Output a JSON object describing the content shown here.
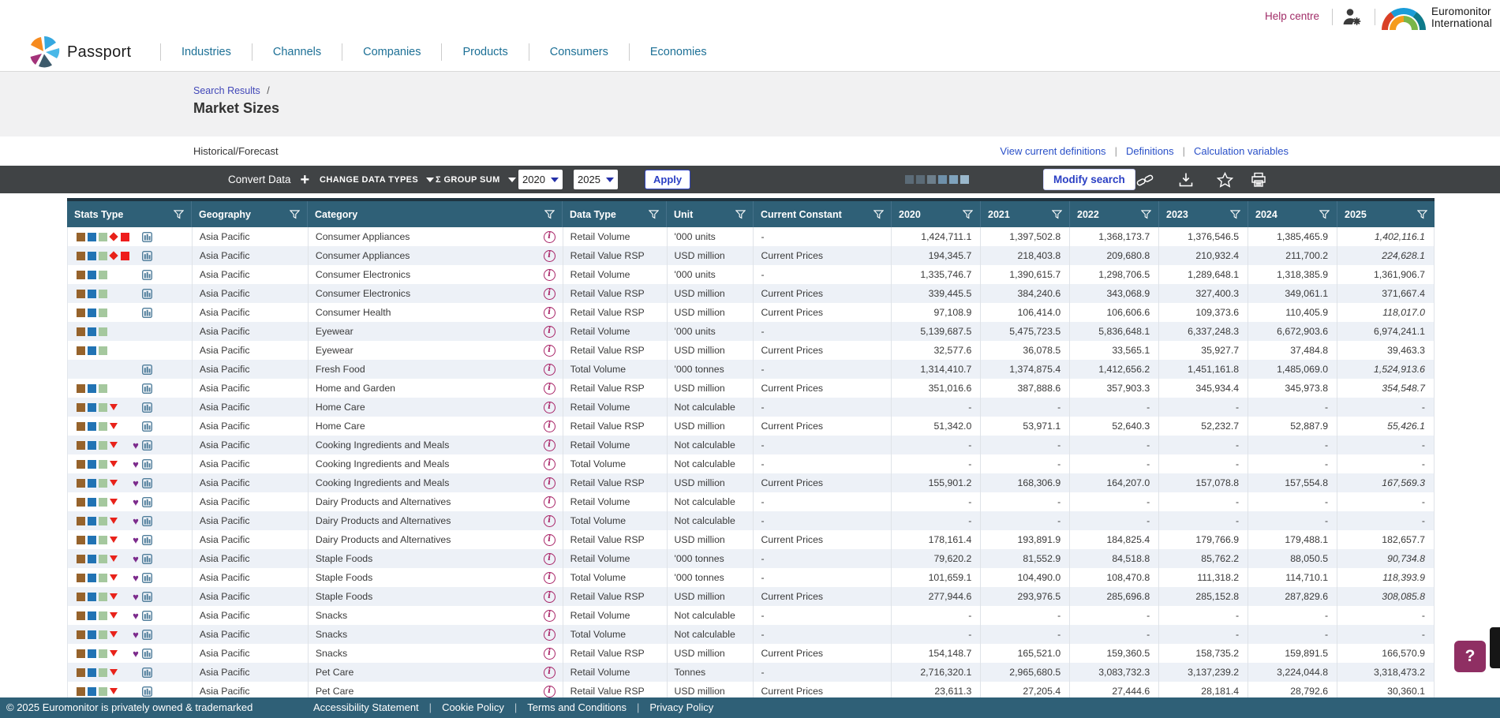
{
  "top_bar": {
    "help_centre": "Help centre",
    "logo_line1": "Euromonitor",
    "logo_line2": "International"
  },
  "nav": {
    "brand": "Passport",
    "items": [
      "Industries",
      "Channels",
      "Companies",
      "Products",
      "Consumers",
      "Economies"
    ]
  },
  "breadcrumb": {
    "link": "Search Results",
    "separator": "/"
  },
  "page": {
    "title": "Market Sizes",
    "subtitle": "Historical/Forecast"
  },
  "definition_links": [
    "View current definitions",
    "Definitions",
    "Calculation variables"
  ],
  "toolbar": {
    "convert_data": "Convert Data",
    "change_data_types": "CHANGE DATA TYPES",
    "group_sum": "Σ GROUP SUM",
    "year_from": "2020",
    "year_to": "2025",
    "apply": "Apply",
    "modify_search": "Modify search",
    "pagination_colors": [
      "#5b6b77",
      "#5b6b77",
      "#6d7f8c",
      "#6e90aa",
      "#7fa3bd",
      "#9ab8cc"
    ]
  },
  "table": {
    "headers": [
      "Stats Type",
      "Geography",
      "Category",
      "Data Type",
      "Unit",
      "Current Constant",
      "2020",
      "2021",
      "2022",
      "2023",
      "2024",
      "2025"
    ],
    "rows": [
      {
        "icons": [
          "sq-brown",
          "sq-blue",
          "sq-green",
          "diamond",
          "sq-red",
          null,
          "bar"
        ],
        "geography": "Asia Pacific",
        "category": "Consumer Appliances",
        "data_type": "Retail Volume",
        "unit": "'000 units",
        "current_constant": "-",
        "values": [
          "1,424,711.1",
          "1,397,502.8",
          "1,368,173.7",
          "1,376,546.5",
          "1,385,465.9",
          "1,402,116.1"
        ],
        "forecast_italic": true
      },
      {
        "icons": [
          "sq-brown",
          "sq-blue",
          "sq-green",
          "diamond",
          "sq-red",
          null,
          "bar"
        ],
        "geography": "Asia Pacific",
        "category": "Consumer Appliances",
        "data_type": "Retail Value RSP",
        "unit": "USD million",
        "current_constant": "Current Prices",
        "values": [
          "194,345.7",
          "218,403.8",
          "209,680.8",
          "210,932.4",
          "211,700.2",
          "224,628.1"
        ],
        "forecast_italic": true
      },
      {
        "icons": [
          "sq-brown",
          "sq-blue",
          "sq-green",
          null,
          null,
          null,
          "bar"
        ],
        "geography": "Asia Pacific",
        "category": "Consumer Electronics",
        "data_type": "Retail Volume",
        "unit": "'000 units",
        "current_constant": "-",
        "values": [
          "1,335,746.7",
          "1,390,615.7",
          "1,298,706.5",
          "1,289,648.1",
          "1,318,385.9",
          "1,361,906.7"
        ],
        "forecast_italic": false
      },
      {
        "icons": [
          "sq-brown",
          "sq-blue",
          "sq-green",
          null,
          null,
          null,
          "bar"
        ],
        "geography": "Asia Pacific",
        "category": "Consumer Electronics",
        "data_type": "Retail Value RSP",
        "unit": "USD million",
        "current_constant": "Current Prices",
        "values": [
          "339,445.5",
          "384,240.6",
          "343,068.9",
          "327,400.3",
          "349,061.1",
          "371,667.4"
        ],
        "forecast_italic": false
      },
      {
        "icons": [
          "sq-brown",
          "sq-blue",
          "sq-green",
          null,
          null,
          null,
          "bar"
        ],
        "geography": "Asia Pacific",
        "category": "Consumer Health",
        "data_type": "Retail Value RSP",
        "unit": "USD million",
        "current_constant": "Current Prices",
        "values": [
          "97,108.9",
          "106,414.0",
          "106,606.6",
          "109,373.6",
          "110,405.9",
          "118,017.0"
        ],
        "forecast_italic": true
      },
      {
        "icons": [
          "sq-brown",
          "sq-blue",
          "sq-green",
          null,
          null,
          null,
          null
        ],
        "geography": "Asia Pacific",
        "category": "Eyewear",
        "data_type": "Retail Volume",
        "unit": "'000 units",
        "current_constant": "-",
        "values": [
          "5,139,687.5",
          "5,475,723.5",
          "5,836,648.1",
          "6,337,248.3",
          "6,672,903.6",
          "6,974,241.1"
        ],
        "forecast_italic": false
      },
      {
        "icons": [
          "sq-brown",
          "sq-blue",
          "sq-green",
          null,
          null,
          null,
          null
        ],
        "geography": "Asia Pacific",
        "category": "Eyewear",
        "data_type": "Retail Value RSP",
        "unit": "USD million",
        "current_constant": "Current Prices",
        "values": [
          "32,577.6",
          "36,078.5",
          "33,565.1",
          "35,927.7",
          "37,484.8",
          "39,463.3"
        ],
        "forecast_italic": false
      },
      {
        "icons": [
          null,
          null,
          null,
          null,
          null,
          null,
          "bar"
        ],
        "geography": "Asia Pacific",
        "category": "Fresh Food",
        "data_type": "Total Volume",
        "unit": "'000 tonnes",
        "current_constant": "-",
        "values": [
          "1,314,410.7",
          "1,374,875.4",
          "1,412,656.2",
          "1,451,161.8",
          "1,485,069.0",
          "1,524,913.6"
        ],
        "forecast_italic": true
      },
      {
        "icons": [
          "sq-brown",
          "sq-blue",
          "sq-green",
          null,
          null,
          null,
          "bar"
        ],
        "geography": "Asia Pacific",
        "category": "Home and Garden",
        "data_type": "Retail Value RSP",
        "unit": "USD million",
        "current_constant": "Current Prices",
        "values": [
          "351,016.6",
          "387,888.6",
          "357,903.3",
          "345,934.4",
          "345,973.8",
          "354,548.7"
        ],
        "forecast_italic": true
      },
      {
        "icons": [
          "sq-brown",
          "sq-blue",
          "sq-green",
          "tri",
          null,
          null,
          "bar"
        ],
        "geography": "Asia Pacific",
        "category": "Home Care",
        "data_type": "Retail Volume",
        "unit": "Not calculable",
        "current_constant": "-",
        "values": [
          "-",
          "-",
          "-",
          "-",
          "-",
          "-"
        ],
        "forecast_italic": false
      },
      {
        "icons": [
          "sq-brown",
          "sq-blue",
          "sq-green",
          "tri",
          null,
          null,
          "bar"
        ],
        "geography": "Asia Pacific",
        "category": "Home Care",
        "data_type": "Retail Value RSP",
        "unit": "USD million",
        "current_constant": "Current Prices",
        "values": [
          "51,342.0",
          "53,971.1",
          "52,640.3",
          "52,232.7",
          "52,887.9",
          "55,426.1"
        ],
        "forecast_italic": true
      },
      {
        "icons": [
          "sq-brown",
          "sq-blue",
          "sq-green",
          "tri",
          null,
          "heart",
          "bar"
        ],
        "geography": "Asia Pacific",
        "category": "Cooking Ingredients and Meals",
        "data_type": "Retail Volume",
        "unit": "Not calculable",
        "current_constant": "-",
        "values": [
          "-",
          "-",
          "-",
          "-",
          "-",
          "-"
        ],
        "forecast_italic": false
      },
      {
        "icons": [
          "sq-brown",
          "sq-blue",
          "sq-green",
          "tri",
          null,
          "heart",
          "bar"
        ],
        "geography": "Asia Pacific",
        "category": "Cooking Ingredients and Meals",
        "data_type": "Total Volume",
        "unit": "Not calculable",
        "current_constant": "-",
        "values": [
          "-",
          "-",
          "-",
          "-",
          "-",
          "-"
        ],
        "forecast_italic": false
      },
      {
        "icons": [
          "sq-brown",
          "sq-blue",
          "sq-green",
          "tri",
          null,
          "heart",
          "bar"
        ],
        "geography": "Asia Pacific",
        "category": "Cooking Ingredients and Meals",
        "data_type": "Retail Value RSP",
        "unit": "USD million",
        "current_constant": "Current Prices",
        "values": [
          "155,901.2",
          "168,306.9",
          "164,207.0",
          "157,078.8",
          "157,554.8",
          "167,569.3"
        ],
        "forecast_italic": true
      },
      {
        "icons": [
          "sq-brown",
          "sq-blue",
          "sq-green",
          "tri",
          null,
          "heart",
          "bar"
        ],
        "geography": "Asia Pacific",
        "category": "Dairy Products and Alternatives",
        "data_type": "Retail Volume",
        "unit": "Not calculable",
        "current_constant": "-",
        "values": [
          "-",
          "-",
          "-",
          "-",
          "-",
          "-"
        ],
        "forecast_italic": false
      },
      {
        "icons": [
          "sq-brown",
          "sq-blue",
          "sq-green",
          "tri",
          null,
          "heart",
          "bar"
        ],
        "geography": "Asia Pacific",
        "category": "Dairy Products and Alternatives",
        "data_type": "Total Volume",
        "unit": "Not calculable",
        "current_constant": "-",
        "values": [
          "-",
          "-",
          "-",
          "-",
          "-",
          "-"
        ],
        "forecast_italic": false
      },
      {
        "icons": [
          "sq-brown",
          "sq-blue",
          "sq-green",
          "tri",
          null,
          "heart",
          "bar"
        ],
        "geography": "Asia Pacific",
        "category": "Dairy Products and Alternatives",
        "data_type": "Retail Value RSP",
        "unit": "USD million",
        "current_constant": "Current Prices",
        "values": [
          "178,161.4",
          "193,891.9",
          "184,825.4",
          "179,766.9",
          "179,488.1",
          "182,657.7"
        ],
        "forecast_italic": false
      },
      {
        "icons": [
          "sq-brown",
          "sq-blue",
          "sq-green",
          "tri",
          null,
          "heart",
          "bar"
        ],
        "geography": "Asia Pacific",
        "category": "Staple Foods",
        "data_type": "Retail Volume",
        "unit": "'000 tonnes",
        "current_constant": "-",
        "values": [
          "79,620.2",
          "81,552.9",
          "84,518.8",
          "85,762.2",
          "88,050.5",
          "90,734.8"
        ],
        "forecast_italic": true
      },
      {
        "icons": [
          "sq-brown",
          "sq-blue",
          "sq-green",
          "tri",
          null,
          "heart",
          "bar"
        ],
        "geography": "Asia Pacific",
        "category": "Staple Foods",
        "data_type": "Total Volume",
        "unit": "'000 tonnes",
        "current_constant": "-",
        "values": [
          "101,659.1",
          "104,490.0",
          "108,470.8",
          "111,318.2",
          "114,710.1",
          "118,393.9"
        ],
        "forecast_italic": true
      },
      {
        "icons": [
          "sq-brown",
          "sq-blue",
          "sq-green",
          "tri",
          null,
          "heart",
          "bar"
        ],
        "geography": "Asia Pacific",
        "category": "Staple Foods",
        "data_type": "Retail Value RSP",
        "unit": "USD million",
        "current_constant": "Current Prices",
        "values": [
          "277,944.6",
          "293,976.5",
          "285,696.8",
          "285,152.8",
          "287,829.6",
          "308,085.8"
        ],
        "forecast_italic": true
      },
      {
        "icons": [
          "sq-brown",
          "sq-blue",
          "sq-green",
          "tri",
          null,
          "heart",
          "bar"
        ],
        "geography": "Asia Pacific",
        "category": "Snacks",
        "data_type": "Retail Volume",
        "unit": "Not calculable",
        "current_constant": "-",
        "values": [
          "-",
          "-",
          "-",
          "-",
          "-",
          "-"
        ],
        "forecast_italic": false
      },
      {
        "icons": [
          "sq-brown",
          "sq-blue",
          "sq-green",
          "tri",
          null,
          "heart",
          "bar"
        ],
        "geography": "Asia Pacific",
        "category": "Snacks",
        "data_type": "Total Volume",
        "unit": "Not calculable",
        "current_constant": "-",
        "values": [
          "-",
          "-",
          "-",
          "-",
          "-",
          "-"
        ],
        "forecast_italic": false
      },
      {
        "icons": [
          "sq-brown",
          "sq-blue",
          "sq-green",
          "tri",
          null,
          "heart",
          "bar"
        ],
        "geography": "Asia Pacific",
        "category": "Snacks",
        "data_type": "Retail Value RSP",
        "unit": "USD million",
        "current_constant": "Current Prices",
        "values": [
          "154,148.7",
          "165,521.0",
          "159,360.5",
          "158,735.2",
          "159,891.5",
          "166,570.9"
        ],
        "forecast_italic": false
      },
      {
        "icons": [
          "sq-brown",
          "sq-blue",
          "sq-green",
          "tri",
          null,
          null,
          "bar"
        ],
        "geography": "Asia Pacific",
        "category": "Pet Care",
        "data_type": "Retail Volume",
        "unit": "Tonnes",
        "current_constant": "-",
        "values": [
          "2,716,320.1",
          "2,965,680.5",
          "3,083,732.3",
          "3,137,239.2",
          "3,224,044.8",
          "3,318,473.2"
        ],
        "forecast_italic": false
      },
      {
        "icons": [
          "sq-brown",
          "sq-blue",
          "sq-green",
          "tri",
          null,
          null,
          "bar"
        ],
        "geography": "Asia Pacific",
        "category": "Pet Care",
        "data_type": "Retail Value RSP",
        "unit": "USD million",
        "current_constant": "Current Prices",
        "values": [
          "23,611.3",
          "27,205.4",
          "27,444.6",
          "28,181.4",
          "28,792.6",
          "30,360.1"
        ],
        "forecast_italic": false
      }
    ]
  },
  "footer": {
    "copyright": "© 2025 Euromonitor is privately owned & trademarked",
    "links": [
      "Accessibility Statement",
      "Cookie Policy",
      "Terms and Conditions",
      "Privacy Policy"
    ]
  },
  "help_button": {
    "label": "?"
  },
  "colors": {
    "header_teal": "#2f6077",
    "toolbar_gray": "#404345",
    "accent_blue": "#2a3fc4",
    "link_blue": "#2a50c8",
    "nav_blue": "#1d7096",
    "magenta": "#a12d68",
    "row_alt": "#edf1f7"
  }
}
